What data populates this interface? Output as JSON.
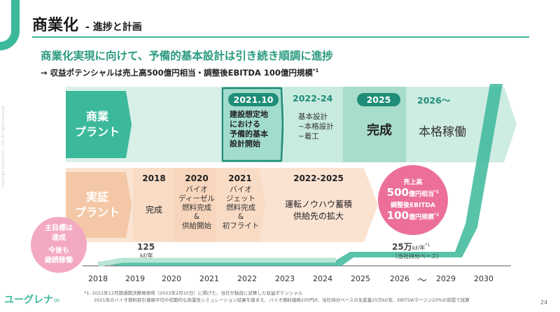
{
  "header": {
    "title": "商業化",
    "subtitle": "- 進捗と計画",
    "headline": "商業化実現に向けて、予備的基本設計は引き続き順調に進捗",
    "subline": "→ 収益ポテンシャルは売上高500億円相当・調整後EBITDA 100億円規模",
    "subline_note": "*1"
  },
  "side_copyright": "Copyright Euglena Co., Ltd. All rights reserved.",
  "commercial": {
    "label_line1": "商業",
    "label_line2": "プラント",
    "phases": [
      {
        "year": "2021.10",
        "text": [
          "建設想定地",
          "における",
          "予備的基本",
          "設計開始"
        ]
      },
      {
        "year": "2022-24",
        "text": [
          "基本設計",
          "~本格設計",
          "~着工"
        ]
      },
      {
        "year": "2025",
        "text": [
          "完成"
        ]
      },
      {
        "year": "2026〜",
        "text": [
          "本格稼働"
        ]
      }
    ]
  },
  "demo": {
    "label_line1": "実証",
    "label_line2": "プラント",
    "phases": [
      {
        "year": "2018",
        "text": [
          "完成"
        ]
      },
      {
        "year": "2020",
        "text": [
          "バイオ",
          "ディーゼル",
          "燃料完成",
          "&",
          "供給開始"
        ]
      },
      {
        "year": "2021",
        "text": [
          "バイオ",
          "ジェット",
          "燃料完成",
          "&",
          "初フライト"
        ]
      },
      {
        "year": "2022-2025",
        "text": [
          "運転ノウハウ蓄積",
          "供給先の拡大"
        ]
      }
    ]
  },
  "circle_left": {
    "lines": [
      "主目標は",
      "達成",
      "今後も",
      "継続稼働"
    ]
  },
  "circle_right": {
    "line1": "売上高",
    "line2_big": "500",
    "line2_small": "億円相当",
    "line2_note": "*1",
    "line3": "調整後EBITDA",
    "line4_big": "100",
    "line4_small": "億円規模",
    "line4_note": "*1"
  },
  "capacity_left": {
    "value": "125",
    "unit": "kℓ/年"
  },
  "capacity_right": {
    "value": "25万",
    "unit": "kℓ/年",
    "note": "*1",
    "sub": "（当社持分ベース）"
  },
  "timeline": {
    "years": [
      "2018",
      "2019",
      "2020",
      "2021",
      "2022",
      "2023",
      "2024",
      "2025",
      "2026",
      "〜",
      "2029",
      "2030"
    ]
  },
  "footnote": {
    "line1": "*1: 2021年12月期通期決算発表時（2022年2月10日）に掲げた、当社が独自に試算した収益ポテンシャル",
    "line2": "2021年のバイオ燃料取引価格平均や初期的な商業性シミュレーション結果を踏まえ、バイオ燃料価格200円/ℓ、当社持分ベースの生産量25万kℓ/年、EBITDAマージン20%の前提で試算"
  },
  "logo_text": "ユーグレナ",
  "page_number": "24",
  "colors": {
    "green": "#3cb89b",
    "dark_green": "#1f8d78",
    "peach": "#f4c8a6",
    "pink": "#ec6f9b"
  }
}
